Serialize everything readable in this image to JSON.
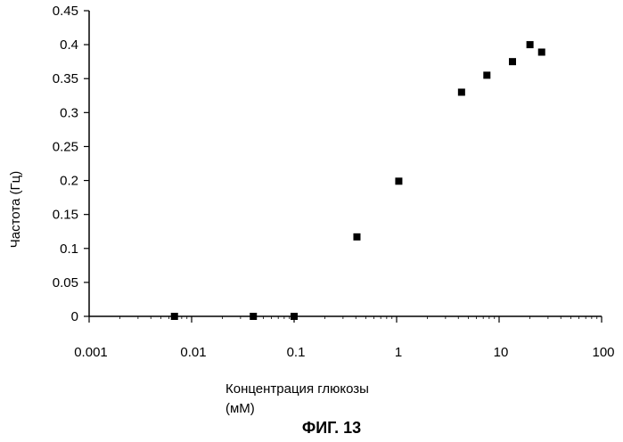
{
  "chart_data": {
    "type": "scatter",
    "xscale": "log",
    "xlim": [
      0.001,
      100
    ],
    "ylim": [
      0,
      0.45
    ],
    "xticks": [
      "0.001",
      "0.01",
      "0.1",
      "1",
      "10",
      "100"
    ],
    "yticks": [
      "0",
      "0.05",
      "0.1",
      "0.15",
      "0.2",
      "0.25",
      "0.3",
      "0.35",
      "0.4",
      "0.45"
    ],
    "xlabel_line1": "Концентрация глюкозы",
    "xlabel_line2": "(мМ)",
    "ylabel": "Частота (Гц)",
    "grid": false,
    "marker": "square",
    "series": [
      {
        "x": [
          0.0068,
          0.04,
          0.1,
          0.41,
          1.05,
          4.3,
          7.6,
          13.5,
          20,
          26
        ],
        "y": [
          0.0,
          0.0,
          0.0,
          0.117,
          0.199,
          0.33,
          0.355,
          0.375,
          0.4,
          0.389
        ]
      }
    ]
  },
  "figure_label": "ФИГ. 13"
}
